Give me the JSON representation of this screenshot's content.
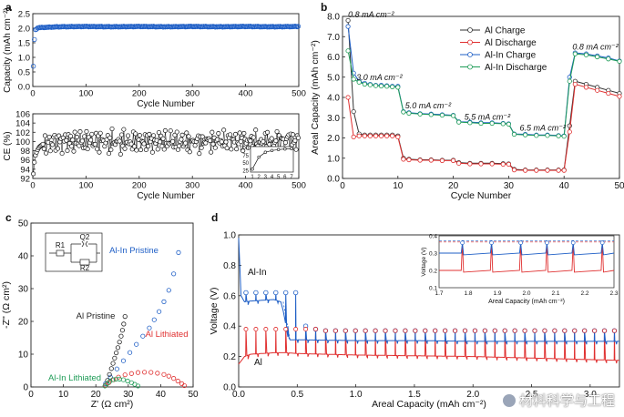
{
  "chart_data": [
    {
      "panel": "a",
      "subpanel": "top",
      "type": "scatter",
      "xlabel": "Cycle Number",
      "ylabel": "Capacity (mAh cm⁻²)",
      "xlim": [
        0,
        500
      ],
      "ylim": [
        0.0,
        2.5
      ],
      "xticks": [
        0,
        100,
        200,
        300,
        400,
        500
      ],
      "yticks": [
        0.0,
        0.5,
        1.0,
        1.5,
        2.0,
        2.5
      ],
      "series": [
        {
          "name": "Capacity",
          "color": "#1f5fc6",
          "x": [
            1,
            2,
            3,
            4,
            5,
            10,
            50,
            100,
            150,
            200,
            250,
            300,
            350,
            400,
            450,
            500
          ],
          "y": [
            0.7,
            1.2,
            1.6,
            1.85,
            1.95,
            2.02,
            2.05,
            2.06,
            2.05,
            2.06,
            2.05,
            2.06,
            2.05,
            2.06,
            2.05,
            2.06
          ]
        }
      ]
    },
    {
      "panel": "a",
      "subpanel": "bottom",
      "type": "scatter",
      "xlabel": "Cycle Number",
      "ylabel": "CE (%)",
      "xlim": [
        0,
        500
      ],
      "ylim": [
        92,
        106
      ],
      "xticks": [
        0,
        100,
        200,
        300,
        400,
        500
      ],
      "yticks": [
        92,
        94,
        96,
        98,
        100,
        102,
        104,
        106
      ],
      "series": [
        {
          "name": "CE",
          "color": "#111111",
          "x": [
            1,
            3,
            5,
            8,
            12,
            20,
            50,
            100,
            150,
            200,
            250,
            300,
            350,
            400,
            450,
            500
          ],
          "y": [
            93.0,
            95.5,
            97.0,
            98.0,
            98.8,
            99.5,
            100.0,
            100.1,
            99.9,
            100.0,
            100.1,
            99.8,
            100.2,
            100.1,
            99.9,
            100.3
          ]
        }
      ],
      "inset": {
        "xticks": [
          1,
          2,
          3,
          4,
          5,
          6,
          7
        ],
        "yticks": [
          25,
          50,
          75,
          100
        ],
        "x": [
          1,
          2,
          3,
          4,
          5,
          6,
          7
        ],
        "y": [
          30,
          70,
          86,
          92,
          95,
          97,
          98
        ]
      }
    },
    {
      "panel": "b",
      "type": "line",
      "xlabel": "Cycle Number",
      "ylabel": "Areal Capacity (mAh cm⁻²)",
      "xlim": [
        0,
        50
      ],
      "ylim": [
        0.0,
        8.0
      ],
      "xticks": [
        0,
        10,
        20,
        30,
        40,
        50
      ],
      "yticks": [
        0.0,
        1.0,
        2.0,
        3.0,
        4.0,
        5.0,
        6.0,
        7.0,
        8.0
      ],
      "legend_position": "top-right",
      "annotations": [
        "0.8 mA cm⁻²",
        "3.0 mA cm⁻²",
        "5.0 mA cm⁻²",
        "5.5 mA cm⁻²",
        "6.5 mA cm⁻²",
        "0.8 mA cm⁻²"
      ],
      "series": [
        {
          "name": "Al Charge",
          "color": "#333333",
          "x": [
            1,
            2,
            3,
            4,
            5,
            6,
            7,
            8,
            9,
            10,
            11,
            12,
            14,
            16,
            18,
            20,
            21,
            23,
            25,
            27,
            29,
            30,
            31,
            33,
            35,
            37,
            39,
            40,
            41,
            42,
            44,
            46,
            48,
            50
          ],
          "y": [
            7.8,
            3.3,
            2.2,
            2.15,
            2.15,
            2.15,
            2.15,
            2.15,
            2.15,
            2.1,
            1.0,
            0.95,
            0.92,
            0.92,
            0.9,
            0.9,
            0.78,
            0.75,
            0.75,
            0.75,
            0.73,
            0.72,
            0.45,
            0.42,
            0.42,
            0.42,
            0.42,
            0.42,
            2.6,
            4.8,
            4.65,
            4.5,
            4.35,
            4.2
          ]
        },
        {
          "name": "Al Discharge",
          "color": "#e03030",
          "x": [
            1,
            2,
            3,
            4,
            5,
            6,
            7,
            8,
            9,
            10,
            11,
            12,
            14,
            16,
            18,
            20,
            21,
            23,
            25,
            27,
            29,
            30,
            31,
            33,
            35,
            37,
            39,
            40,
            41,
            42,
            44,
            46,
            48,
            50
          ],
          "y": [
            4.0,
            2.05,
            2.1,
            2.1,
            2.1,
            2.1,
            2.1,
            2.1,
            2.1,
            2.05,
            0.95,
            0.92,
            0.9,
            0.9,
            0.88,
            0.88,
            0.75,
            0.72,
            0.72,
            0.72,
            0.7,
            0.7,
            0.42,
            0.4,
            0.4,
            0.4,
            0.4,
            0.4,
            2.3,
            4.65,
            4.5,
            4.35,
            4.2,
            4.05
          ]
        },
        {
          "name": "Al-In Charge",
          "color": "#1f5fc6",
          "x": [
            1,
            2,
            3,
            4,
            5,
            6,
            7,
            8,
            9,
            10,
            11,
            12,
            14,
            16,
            18,
            20,
            21,
            23,
            25,
            27,
            29,
            30,
            31,
            33,
            35,
            37,
            39,
            40,
            41,
            42,
            44,
            46,
            48,
            50
          ],
          "y": [
            7.5,
            5.2,
            4.8,
            4.7,
            4.65,
            4.6,
            4.6,
            4.58,
            4.55,
            4.55,
            3.3,
            3.25,
            3.2,
            3.18,
            3.15,
            3.12,
            2.8,
            2.78,
            2.75,
            2.75,
            2.72,
            2.7,
            2.2,
            2.18,
            2.15,
            2.15,
            2.12,
            2.1,
            5.0,
            6.2,
            6.15,
            6.05,
            5.95,
            5.8
          ]
        },
        {
          "name": "Al-In Discharge",
          "color": "#1f9c57",
          "x": [
            1,
            2,
            3,
            4,
            5,
            6,
            7,
            8,
            9,
            10,
            11,
            12,
            14,
            16,
            18,
            20,
            21,
            23,
            25,
            27,
            29,
            30,
            31,
            33,
            35,
            37,
            39,
            40,
            41,
            42,
            44,
            46,
            48,
            50
          ],
          "y": [
            6.3,
            4.9,
            4.75,
            4.65,
            4.62,
            4.58,
            4.56,
            4.55,
            4.52,
            4.5,
            3.28,
            3.22,
            3.18,
            3.15,
            3.12,
            3.1,
            2.78,
            2.75,
            2.72,
            2.72,
            2.7,
            2.68,
            2.18,
            2.15,
            2.12,
            2.12,
            2.1,
            2.08,
            4.8,
            6.15,
            6.1,
            6.0,
            5.9,
            5.78
          ]
        }
      ]
    },
    {
      "panel": "c",
      "type": "scatter",
      "xlabel": "Z' (Ω cm²)",
      "ylabel": "-Z'' (Ω cm²)",
      "xlim": [
        0,
        50
      ],
      "ylim": [
        0,
        50
      ],
      "xticks": [
        0,
        10,
        20,
        30,
        40,
        50
      ],
      "yticks": [
        0,
        10,
        20,
        30,
        40,
        50
      ],
      "circuit_labels": [
        "R1",
        "Q2",
        "R2"
      ],
      "series": [
        {
          "name": "Al-In Pristine",
          "color": "#1f5fc6",
          "x": [
            23.0,
            24.5,
            26.5,
            28.5,
            30.5,
            32.5,
            34.5,
            36.5,
            38.0,
            39.5,
            41.0,
            42.5,
            44.0,
            45.5
          ],
          "y": [
            1.0,
            3.0,
            5.5,
            8.0,
            10.5,
            13.0,
            15.5,
            18.0,
            20.5,
            23.0,
            26.0,
            29.5,
            34.5,
            41.0
          ]
        },
        {
          "name": "Al Pristine",
          "color": "#222222",
          "x": [
            23.0,
            23.6,
            24.2,
            24.8,
            25.3,
            25.8,
            26.3,
            26.8,
            27.3,
            27.8,
            28.2,
            28.6,
            29.0
          ],
          "y": [
            0.5,
            2.0,
            3.8,
            5.6,
            7.2,
            8.8,
            10.4,
            12.0,
            13.7,
            15.5,
            17.3,
            19.2,
            21.5
          ]
        },
        {
          "name": "Al Lithiated",
          "color": "#e03030",
          "x": [
            23.0,
            24.0,
            25.5,
            27.0,
            29.0,
            31.0,
            33.0,
            35.0,
            37.0,
            39.0,
            41.0,
            42.5,
            44.0,
            45.3,
            46.5,
            47.3
          ],
          "y": [
            0.5,
            1.3,
            2.2,
            3.0,
            3.7,
            4.1,
            4.4,
            4.5,
            4.45,
            4.2,
            3.8,
            3.3,
            2.6,
            1.8,
            1.0,
            0.4
          ]
        },
        {
          "name": "Al-In Lithiated",
          "color": "#1f9c57",
          "x": [
            22.8,
            23.5,
            24.3,
            25.2,
            26.2,
            27.3,
            28.5,
            29.8,
            31.0,
            32.0,
            33.0
          ],
          "y": [
            0.3,
            1.0,
            1.7,
            2.2,
            2.4,
            2.4,
            2.2,
            1.8,
            1.3,
            0.8,
            0.3
          ]
        }
      ]
    },
    {
      "panel": "d",
      "type": "line",
      "xlabel": "Areal Capacity (mAh cm⁻²)",
      "ylabel": "Voltage (V)",
      "xlim": [
        0.0,
        3.25
      ],
      "ylim": [
        0.0,
        1.0
      ],
      "xticks": [
        0.0,
        0.5,
        1.0,
        1.5,
        2.0,
        2.5,
        3.0
      ],
      "yticks": [
        0.0,
        0.2,
        0.4,
        0.6,
        0.8,
        1.0
      ],
      "series_labels": [
        "Al-In",
        "Al"
      ],
      "series": [
        {
          "name": "Al-In",
          "color": "#1f5fc6",
          "x": [
            0.0,
            0.02,
            0.05,
            0.1,
            0.2,
            0.3,
            0.36,
            0.38,
            0.4,
            0.42,
            0.44,
            0.5,
            1.0,
            1.5,
            2.0,
            2.5,
            3.0,
            3.25
          ],
          "y": [
            0.98,
            0.6,
            0.56,
            0.565,
            0.57,
            0.575,
            0.56,
            0.5,
            0.42,
            0.33,
            0.31,
            0.31,
            0.305,
            0.305,
            0.3,
            0.3,
            0.3,
            0.3
          ]
        },
        {
          "name": "Al",
          "color": "#e03030",
          "x": [
            0.0,
            0.05,
            0.1,
            0.2,
            0.3,
            0.4,
            0.5,
            1.0,
            1.5,
            2.0,
            2.5,
            3.0,
            3.25
          ],
          "y": [
            0.15,
            0.2,
            0.215,
            0.22,
            0.225,
            0.225,
            0.22,
            0.21,
            0.205,
            0.2,
            0.19,
            0.18,
            0.175
          ]
        }
      ],
      "spike_peaks": {
        "Al-In": [
          0.62,
          0.62,
          0.62,
          0.62,
          0.62,
          0.62,
          0.4,
          0.38,
          0.37,
          0.37
        ],
        "Al": [
          0.38,
          0.38,
          0.38,
          0.38,
          0.38,
          0.38,
          0.38,
          0.38,
          0.37,
          0.37
        ]
      },
      "inset": {
        "xlabel": "Areal Capacity (mAh cm⁻²)",
        "ylabel": "Voltage (V)",
        "xlim": [
          1.7,
          2.3
        ],
        "ylim": [
          0.1,
          0.4
        ],
        "xticks": [
          1.7,
          1.8,
          1.9,
          2.0,
          2.1,
          2.2,
          2.3
        ],
        "yticks": [
          0.1,
          0.2,
          0.3,
          0.4
        ],
        "spike_x": [
          1.78,
          1.88,
          1.98,
          2.07,
          2.16,
          2.26
        ],
        "al_in_level": 0.3,
        "al_level": 0.2,
        "peak": 0.36
      }
    }
  ],
  "panel_labels": [
    "a",
    "b",
    "c",
    "d"
  ],
  "watermark": "材料科学与工程"
}
